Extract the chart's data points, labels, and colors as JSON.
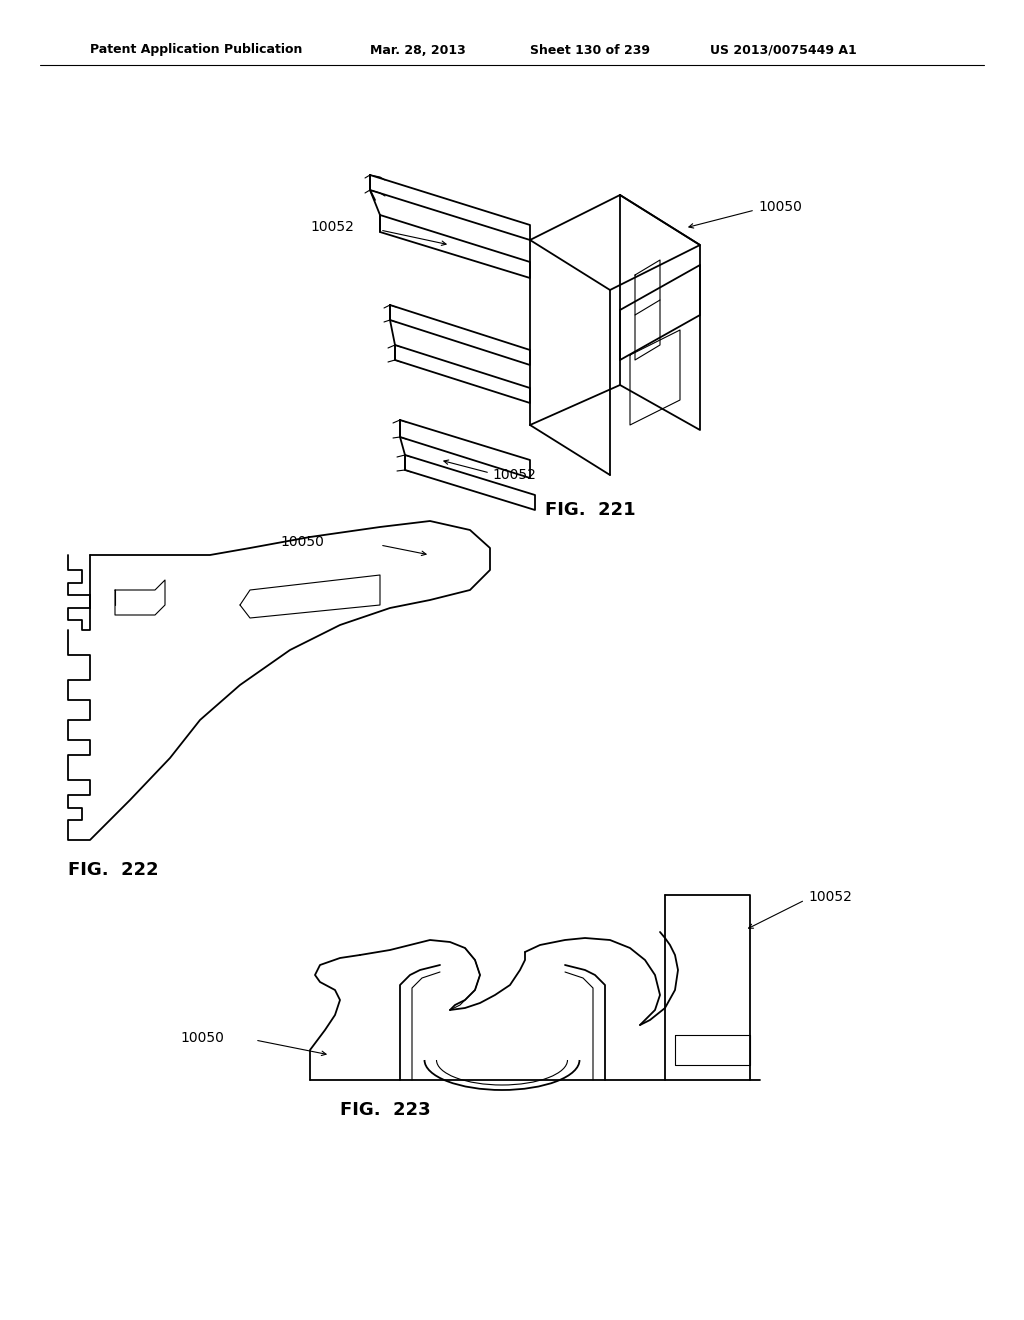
{
  "bg_color": "#ffffff",
  "header_left": "Patent Application Publication",
  "header_date": "Mar. 28, 2013",
  "header_sheet": "Sheet 130 of 239",
  "header_patent": "US 2013/0075449 A1",
  "fig221_label": "FIG.  221",
  "fig222_label": "FIG.  222",
  "fig223_label": "FIG.  223",
  "label_10050": "10050",
  "label_10052": "10052",
  "lw": 1.3,
  "tlw": 0.8
}
